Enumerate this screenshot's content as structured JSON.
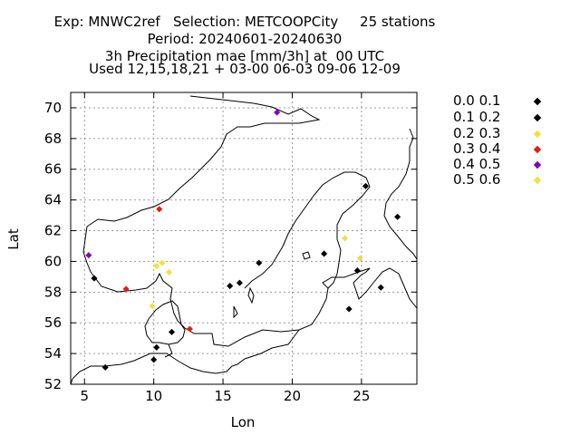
{
  "chart_data": {
    "type": "scatter",
    "title_lines": [
      "Exp: MNWC2ref   Selection: METCOOPCity     25 stations",
      "Period: 20240601-20240630",
      "3h Precipitation mae [mm/3h] at  00 UTC",
      "Used 12,15,18,21 + 03-00 06-03 09-06 12-09"
    ],
    "xlabel": "Lon",
    "ylabel": "Lat",
    "xlim": [
      4,
      29
    ],
    "ylim": [
      52,
      71
    ],
    "xticks": [
      5,
      10,
      15,
      20,
      25
    ],
    "yticks": [
      52,
      54,
      56,
      58,
      60,
      62,
      64,
      66,
      68,
      70
    ],
    "grid": true,
    "legend_position": "right",
    "legend": [
      {
        "label": "0.0 0.1",
        "color": "#000000"
      },
      {
        "label": "0.1 0.2",
        "color": "#000000"
      },
      {
        "label": "0.2 0.3",
        "color": "#f0e040"
      },
      {
        "label": "0.3 0.4",
        "color": "#e02010"
      },
      {
        "label": "0.4 0.5",
        "color": "#8000c0"
      },
      {
        "label": "0.5 0.6",
        "color": "#f0e040"
      }
    ],
    "points": [
      {
        "lon": 18.9,
        "lat": 69.7,
        "class": 4
      },
      {
        "lon": 25.3,
        "lat": 64.9,
        "class": 0
      },
      {
        "lon": 27.6,
        "lat": 62.9,
        "class": 0
      },
      {
        "lon": 10.4,
        "lat": 63.4,
        "class": 3
      },
      {
        "lon": 5.3,
        "lat": 60.4,
        "class": 4
      },
      {
        "lon": 5.7,
        "lat": 58.9,
        "class": 0
      },
      {
        "lon": 8.0,
        "lat": 58.2,
        "class": 3
      },
      {
        "lon": 10.2,
        "lat": 59.7,
        "class": 2
      },
      {
        "lon": 10.6,
        "lat": 59.9,
        "class": 2
      },
      {
        "lon": 11.1,
        "lat": 59.3,
        "class": 2
      },
      {
        "lon": 9.9,
        "lat": 57.1,
        "class": 2
      },
      {
        "lon": 12.6,
        "lat": 55.6,
        "class": 3
      },
      {
        "lon": 10.2,
        "lat": 54.4,
        "class": 0
      },
      {
        "lon": 10.0,
        "lat": 53.6,
        "class": 0
      },
      {
        "lon": 6.5,
        "lat": 53.1,
        "class": 0
      },
      {
        "lon": 15.5,
        "lat": 58.4,
        "class": 0
      },
      {
        "lon": 16.2,
        "lat": 58.6,
        "class": 0
      },
      {
        "lon": 17.6,
        "lat": 59.9,
        "class": 0
      },
      {
        "lon": 22.3,
        "lat": 60.5,
        "class": 0
      },
      {
        "lon": 23.8,
        "lat": 61.5,
        "class": 2
      },
      {
        "lon": 24.9,
        "lat": 60.2,
        "class": 5
      },
      {
        "lon": 24.7,
        "lat": 59.4,
        "class": 0
      },
      {
        "lon": 26.4,
        "lat": 58.3,
        "class": 0
      },
      {
        "lon": 24.1,
        "lat": 56.9,
        "class": 0
      },
      {
        "lon": 11.3,
        "lat": 55.4,
        "class": 0
      }
    ]
  }
}
